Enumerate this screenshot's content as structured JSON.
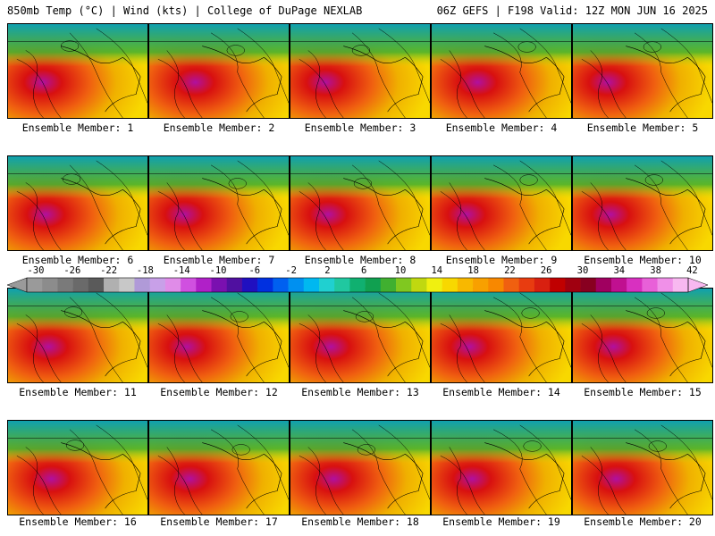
{
  "header": {
    "left": "850mb Temp (°C) | Wind (kts) | College of DuPage NEXLAB",
    "right": "06Z GEFS | F198 Valid: 12Z MON JUN 16 2025"
  },
  "members": [
    "Ensemble Member: 1",
    "Ensemble Member: 2",
    "Ensemble Member: 3",
    "Ensemble Member: 4",
    "Ensemble Member: 5",
    "Ensemble Member: 6",
    "Ensemble Member: 7",
    "Ensemble Member: 8",
    "Ensemble Member: 9",
    "Ensemble Member: 10",
    "Ensemble Member: 11",
    "Ensemble Member: 12",
    "Ensemble Member: 13",
    "Ensemble Member: 14",
    "Ensemble Member: 15",
    "Ensemble Member: 16",
    "Ensemble Member: 17",
    "Ensemble Member: 18",
    "Ensemble Member: 19",
    "Ensemble Member: 20"
  ],
  "colorbar": {
    "labels": [
      "-30",
      "-26",
      "-22",
      "-18",
      "-14",
      "-10",
      "-6",
      "-2",
      "2",
      "6",
      "10",
      "14",
      "18",
      "22",
      "26",
      "30",
      "34",
      "38",
      "42"
    ],
    "colors": [
      "#9a9a9a",
      "#8c8c8c",
      "#7a7a7a",
      "#6a6a6a",
      "#5a5a5a",
      "#b0b0b0",
      "#c8c8c8",
      "#b09ad8",
      "#c8a0e8",
      "#e08ce8",
      "#d050e0",
      "#b020c8",
      "#7a10b0",
      "#5010a0",
      "#2010c0",
      "#0030e0",
      "#0060f0",
      "#0090f0",
      "#00b8f0",
      "#20d0d0",
      "#20c8a0",
      "#10b070",
      "#10a050",
      "#40b030",
      "#80c820",
      "#c0d810",
      "#f0f010",
      "#f8d800",
      "#f8b800",
      "#f8a000",
      "#f88800",
      "#f06010",
      "#e83c10",
      "#d82010",
      "#c00000",
      "#a00010",
      "#880020",
      "#a00060",
      "#c01090",
      "#d830c0",
      "#e860d8",
      "#f090e8",
      "#f8b8f0"
    ]
  },
  "colors": {
    "cold": "#10a0b0",
    "mid": "#f0b000",
    "hot": "#d81010",
    "hottest": "#b010a0"
  }
}
